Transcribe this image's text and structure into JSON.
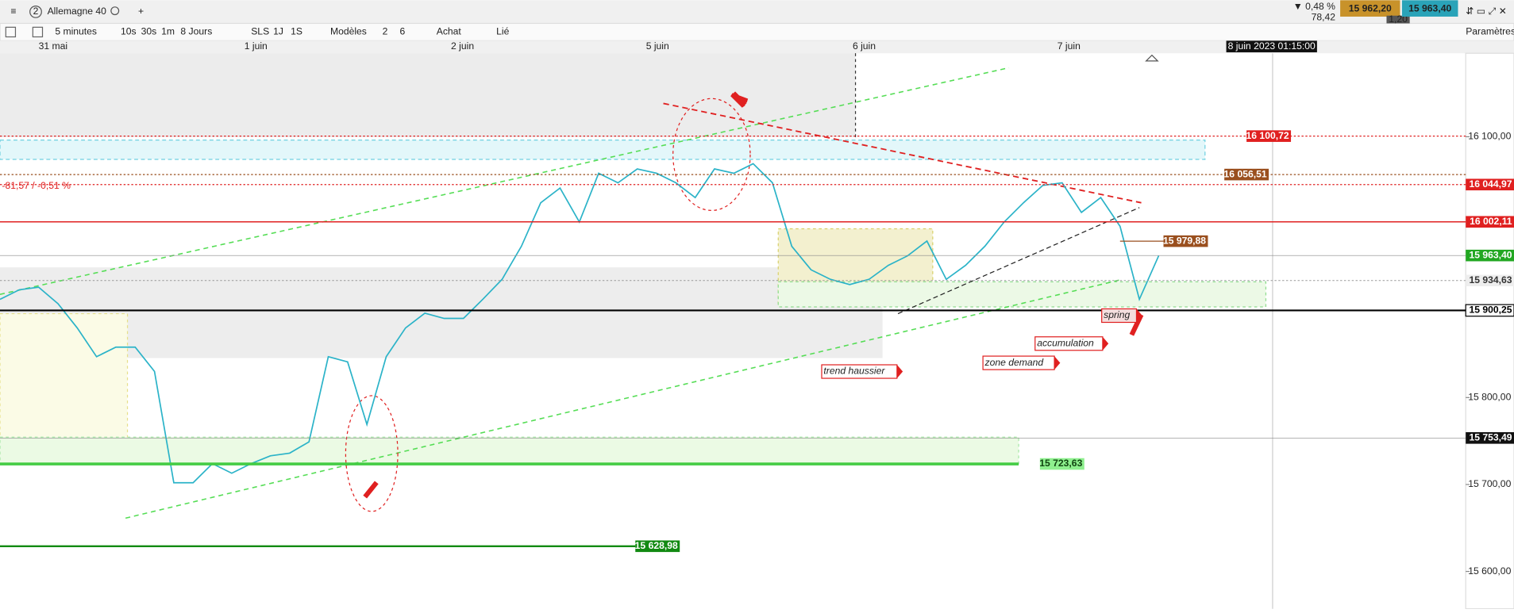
{
  "toolbar": {
    "menu": "≡",
    "tab_index": "2",
    "instrument": "Allemagne 40",
    "add": "+",
    "change_pct": "▼ 0,48 %",
    "change_pts": "78,42",
    "bid": "15 962,20",
    "spread": "1,20",
    "ask": "15 963,40",
    "interval": "5 minutes",
    "periods": [
      "10s",
      "30s",
      "1m"
    ],
    "range": "8 Jours",
    "steps": [
      "SLS",
      "1J",
      "1S"
    ],
    "models": "Modèles",
    "counts": [
      "2",
      "6"
    ],
    "buy": "Achat",
    "linked": "Lié",
    "settings": "Paramètres"
  },
  "chart": {
    "type": "line",
    "color": "#2bb3c8",
    "x_labels": [
      "31 mai",
      "1 juin",
      "2 juin",
      "5 juin",
      "6 juin",
      "7 juin"
    ],
    "crosshair_label": "8 juin 2023 01:15:00",
    "ylim": [
      15557,
      16196
    ],
    "yticks": [
      {
        "value": 16100,
        "label": "16 100,00"
      },
      {
        "value": 15800,
        "label": "15 800,00"
      },
      {
        "value": 15700,
        "label": "15 700,00"
      },
      {
        "value": 15600,
        "label": "15 600,00"
      }
    ],
    "series": [
      {
        "name": "Allemagne 40",
        "values": [
          15913,
          15924,
          15927,
          15908,
          15880,
          15847,
          15858,
          15858,
          15830,
          15702,
          15702,
          15724,
          15713,
          15724,
          15733,
          15736,
          15749,
          15847,
          15841,
          15769,
          15847,
          15880,
          15897,
          15891,
          15891,
          15913,
          15936,
          15974,
          16024,
          16041,
          16002,
          16058,
          16047,
          16063,
          16058,
          16047,
          16030,
          16063,
          16058,
          16069,
          16047,
          15974,
          15947,
          15936,
          15930,
          15936,
          15952,
          15963,
          15980,
          15936,
          15952,
          15974,
          16002,
          16024,
          16044,
          16047,
          16013,
          16030,
          15997,
          15913,
          15963
        ]
      }
    ],
    "levels": [
      {
        "value": 16100.72,
        "label": "16 100,72",
        "color": "#e02020"
      },
      {
        "value": 16056.51,
        "label": "16 056,51",
        "color": "#9a4f1e"
      },
      {
        "value": 16044.97,
        "label": "16 044,97",
        "color": "#e02020"
      },
      {
        "value": 16002.11,
        "label": "16 002,11",
        "color": "#e02020"
      },
      {
        "value": 15979.88,
        "label": "15 979,88",
        "color": "#9a4f1e"
      },
      {
        "value": 15963.4,
        "label": "15 963,40",
        "color": "#22a722"
      },
      {
        "value": 15934.63,
        "label": "15 934,63",
        "color": "#999999"
      },
      {
        "value": 15900.25,
        "label": "15 900,25",
        "color": "#000000"
      },
      {
        "value": 15753.49,
        "label": "15 753,49",
        "color": "#000000"
      },
      {
        "value": 15723.63,
        "label": "15 723,63",
        "color": "#44cc44"
      },
      {
        "value": 15628.98,
        "label": "15 628,98",
        "color": "#128a12"
      }
    ],
    "annotations": [
      "-81,57 / -0,51 %",
      "trend haussier",
      "accumulation",
      "zone demand",
      "spring"
    ]
  }
}
